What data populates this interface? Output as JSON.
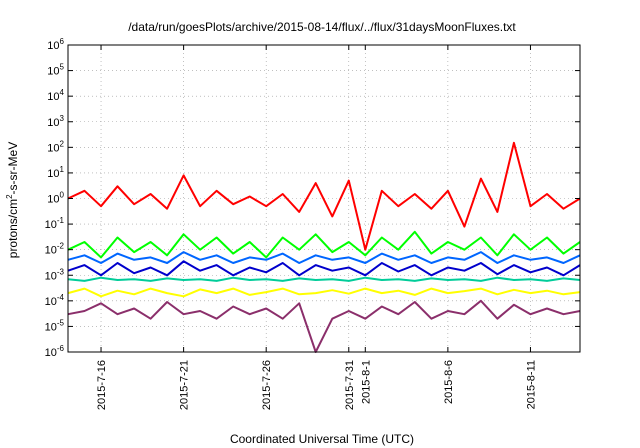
{
  "chart_data": {
    "type": "line",
    "title": "/data/run/goesPlots/archive/2015-08-14/flux/../flux/31daysMoonFluxes.txt",
    "xlabel": "Coordinated Universal Time (UTC)",
    "ylabel_parts": {
      "pre": "protons/cm",
      "sup": "2",
      "post": "-s-sr-MeV"
    },
    "xlim": [
      "2015-07-14",
      "2015-08-14"
    ],
    "ylim": [
      1e-06,
      1000000.0
    ],
    "yscale": "log",
    "grid": true,
    "x_ticks": [
      {
        "date": "2015-07-16",
        "label": "2015-7-16"
      },
      {
        "date": "2015-07-21",
        "label": "2015-7-21"
      },
      {
        "date": "2015-07-26",
        "label": "2015-7-26"
      },
      {
        "date": "2015-07-31",
        "label": "2015-7-31"
      },
      {
        "date": "2015-08-01",
        "label": "2015-8-1"
      },
      {
        "date": "2015-08-06",
        "label": "2015-8-6"
      },
      {
        "date": "2015-08-11",
        "label": "2015-8-11"
      }
    ],
    "y_ticks": [
      {
        "exp": -6,
        "label": "10",
        "sup": "-6"
      },
      {
        "exp": -5,
        "label": "10",
        "sup": "-5"
      },
      {
        "exp": -4,
        "label": "10",
        "sup": "-4"
      },
      {
        "exp": -3,
        "label": "10",
        "sup": "-3"
      },
      {
        "exp": -2,
        "label": "10",
        "sup": "-2"
      },
      {
        "exp": -1,
        "label": "10",
        "sup": "-1"
      },
      {
        "exp": 0,
        "label": "10",
        "sup": "0"
      },
      {
        "exp": 1,
        "label": "10",
        "sup": "1"
      },
      {
        "exp": 2,
        "label": "10",
        "sup": "2"
      },
      {
        "exp": 3,
        "label": "10",
        "sup": "3"
      },
      {
        "exp": 4,
        "label": "10",
        "sup": "4"
      },
      {
        "exp": 5,
        "label": "10",
        "sup": "5"
      },
      {
        "exp": 6,
        "label": "10",
        "sup": "6"
      }
    ],
    "series": [
      {
        "color": "#8b2f6b",
        "x": [
          "2015-07-14",
          "2015-07-15",
          "2015-07-16",
          "2015-07-17",
          "2015-07-18",
          "2015-07-19",
          "2015-07-20",
          "2015-07-21",
          "2015-07-22",
          "2015-07-23",
          "2015-07-24",
          "2015-07-25",
          "2015-07-26",
          "2015-07-27",
          "2015-07-28",
          "2015-07-29",
          "2015-07-30",
          "2015-07-31",
          "2015-08-01",
          "2015-08-02",
          "2015-08-03",
          "2015-08-04",
          "2015-08-05",
          "2015-08-06",
          "2015-08-07",
          "2015-08-08",
          "2015-08-09",
          "2015-08-10",
          "2015-08-11",
          "2015-08-12",
          "2015-08-13",
          "2015-08-14"
        ],
        "y": [
          3e-05,
          4e-05,
          8e-05,
          3e-05,
          5e-05,
          2e-05,
          9e-05,
          3e-05,
          4e-05,
          2e-05,
          6e-05,
          3e-05,
          5e-05,
          2e-05,
          8e-05,
          1e-06,
          2e-05,
          4e-05,
          2e-05,
          6e-05,
          3e-05,
          9e-05,
          2e-05,
          4e-05,
          3e-05,
          0.0001,
          2e-05,
          7e-05,
          3e-05,
          5e-05,
          3e-05,
          4e-05
        ]
      },
      {
        "color": "#ffff00",
        "x": [
          "2015-07-14",
          "2015-07-15",
          "2015-07-16",
          "2015-07-17",
          "2015-07-18",
          "2015-07-19",
          "2015-07-20",
          "2015-07-21",
          "2015-07-22",
          "2015-07-23",
          "2015-07-24",
          "2015-07-25",
          "2015-07-26",
          "2015-07-27",
          "2015-07-28",
          "2015-07-29",
          "2015-07-30",
          "2015-07-31",
          "2015-08-01",
          "2015-08-02",
          "2015-08-03",
          "2015-08-04",
          "2015-08-05",
          "2015-08-06",
          "2015-08-07",
          "2015-08-08",
          "2015-08-09",
          "2015-08-10",
          "2015-08-11",
          "2015-08-12",
          "2015-08-13",
          "2015-08-14"
        ],
        "y": [
          0.0002,
          0.0003,
          0.00015,
          0.00025,
          0.00018,
          0.0003,
          0.0002,
          0.00015,
          0.00028,
          0.0002,
          0.0003,
          0.00017,
          0.00022,
          0.0003,
          0.00018,
          0.0002,
          0.00026,
          0.00019,
          0.0003,
          0.0002,
          0.00025,
          0.00017,
          0.0003,
          0.0002,
          0.00024,
          0.0003,
          0.00018,
          0.00027,
          0.0002,
          0.00025,
          0.00018,
          0.00022
        ]
      },
      {
        "color": "#00cc99",
        "x": [
          "2015-07-14",
          "2015-07-15",
          "2015-07-16",
          "2015-07-17",
          "2015-07-18",
          "2015-07-19",
          "2015-07-20",
          "2015-07-21",
          "2015-07-22",
          "2015-07-23",
          "2015-07-24",
          "2015-07-25",
          "2015-07-26",
          "2015-07-27",
          "2015-07-28",
          "2015-07-29",
          "2015-07-30",
          "2015-07-31",
          "2015-08-01",
          "2015-08-02",
          "2015-08-03",
          "2015-08-04",
          "2015-08-05",
          "2015-08-06",
          "2015-08-07",
          "2015-08-08",
          "2015-08-09",
          "2015-08-10",
          "2015-08-11",
          "2015-08-12",
          "2015-08-13",
          "2015-08-14"
        ],
        "y": [
          0.0007,
          0.0006,
          0.0008,
          0.00065,
          0.0007,
          0.0006,
          0.00075,
          0.00065,
          0.0007,
          0.0006,
          0.0008,
          0.00065,
          0.0007,
          0.0006,
          0.00075,
          0.00065,
          0.0007,
          0.0006,
          0.0008,
          0.00065,
          0.0007,
          0.0006,
          0.00075,
          0.00065,
          0.0007,
          0.0006,
          0.0008,
          0.00065,
          0.0007,
          0.0006,
          0.00075,
          0.00065
        ]
      },
      {
        "color": "#00ff00",
        "x": [
          "2015-07-14",
          "2015-07-15",
          "2015-07-16",
          "2015-07-17",
          "2015-07-18",
          "2015-07-19",
          "2015-07-20",
          "2015-07-21",
          "2015-07-22",
          "2015-07-23",
          "2015-07-24",
          "2015-07-25",
          "2015-07-26",
          "2015-07-27",
          "2015-07-28",
          "2015-07-29",
          "2015-07-30",
          "2015-07-31",
          "2015-08-01",
          "2015-08-02",
          "2015-08-03",
          "2015-08-04",
          "2015-08-05",
          "2015-08-06",
          "2015-08-07",
          "2015-08-08",
          "2015-08-09",
          "2015-08-10",
          "2015-08-11",
          "2015-08-12",
          "2015-08-13",
          "2015-08-14"
        ],
        "y": [
          0.01,
          0.02,
          0.005,
          0.03,
          0.008,
          0.02,
          0.006,
          0.04,
          0.01,
          0.03,
          0.007,
          0.02,
          0.005,
          0.03,
          0.01,
          0.04,
          0.008,
          0.02,
          0.006,
          0.03,
          0.01,
          0.05,
          0.007,
          0.02,
          0.01,
          0.03,
          0.006,
          0.04,
          0.01,
          0.03,
          0.007,
          0.02
        ]
      },
      {
        "color": "#0066ff",
        "x": [
          "2015-07-14",
          "2015-07-15",
          "2015-07-16",
          "2015-07-17",
          "2015-07-18",
          "2015-07-19",
          "2015-07-20",
          "2015-07-21",
          "2015-07-22",
          "2015-07-23",
          "2015-07-24",
          "2015-07-25",
          "2015-07-26",
          "2015-07-27",
          "2015-07-28",
          "2015-07-29",
          "2015-07-30",
          "2015-07-31",
          "2015-08-01",
          "2015-08-02",
          "2015-08-03",
          "2015-08-04",
          "2015-08-05",
          "2015-08-06",
          "2015-08-07",
          "2015-08-08",
          "2015-08-09",
          "2015-08-10",
          "2015-08-11",
          "2015-08-12",
          "2015-08-13",
          "2015-08-14"
        ],
        "y": [
          0.004,
          0.006,
          0.003,
          0.007,
          0.004,
          0.005,
          0.003,
          0.008,
          0.004,
          0.006,
          0.003,
          0.005,
          0.004,
          0.007,
          0.003,
          0.006,
          0.004,
          0.005,
          0.003,
          0.007,
          0.004,
          0.006,
          0.003,
          0.005,
          0.004,
          0.008,
          0.003,
          0.006,
          0.004,
          0.005,
          0.003,
          0.006
        ]
      },
      {
        "color": "#0000cc",
        "x": [
          "2015-07-14",
          "2015-07-15",
          "2015-07-16",
          "2015-07-17",
          "2015-07-18",
          "2015-07-19",
          "2015-07-20",
          "2015-07-21",
          "2015-07-22",
          "2015-07-23",
          "2015-07-24",
          "2015-07-25",
          "2015-07-26",
          "2015-07-27",
          "2015-07-28",
          "2015-07-29",
          "2015-07-30",
          "2015-07-31",
          "2015-08-01",
          "2015-08-02",
          "2015-08-03",
          "2015-08-04",
          "2015-08-05",
          "2015-08-06",
          "2015-08-07",
          "2015-08-08",
          "2015-08-09",
          "2015-08-10",
          "2015-08-11",
          "2015-08-12",
          "2015-08-13",
          "2015-08-14"
        ],
        "y": [
          0.0015,
          0.0025,
          0.001,
          0.003,
          0.0012,
          0.002,
          0.001,
          0.0035,
          0.0015,
          0.0025,
          0.001,
          0.002,
          0.0013,
          0.003,
          0.001,
          0.0025,
          0.0015,
          0.002,
          0.001,
          0.003,
          0.0014,
          0.0025,
          0.001,
          0.002,
          0.0015,
          0.003,
          0.0011,
          0.0025,
          0.0013,
          0.002,
          0.001,
          0.0025
        ]
      },
      {
        "color": "#ff0000",
        "x": [
          "2015-07-14",
          "2015-07-15",
          "2015-07-16",
          "2015-07-17",
          "2015-07-18",
          "2015-07-19",
          "2015-07-20",
          "2015-07-21",
          "2015-07-22",
          "2015-07-23",
          "2015-07-24",
          "2015-07-25",
          "2015-07-26",
          "2015-07-27",
          "2015-07-28",
          "2015-07-29",
          "2015-07-30",
          "2015-07-31",
          "2015-08-01",
          "2015-08-02",
          "2015-08-03",
          "2015-08-04",
          "2015-08-05",
          "2015-08-06",
          "2015-08-07",
          "2015-08-08",
          "2015-08-09",
          "2015-08-10",
          "2015-08-11",
          "2015-08-12",
          "2015-08-13",
          "2015-08-14"
        ],
        "y": [
          1,
          2,
          0.5,
          3,
          0.6,
          1.5,
          0.4,
          8,
          0.5,
          2,
          0.6,
          1.2,
          0.5,
          1.5,
          0.3,
          4,
          0.2,
          5,
          0.01,
          2,
          0.5,
          1.5,
          0.4,
          2,
          0.08,
          6,
          0.3,
          150,
          0.5,
          1.5,
          0.4,
          1
        ]
      }
    ]
  }
}
